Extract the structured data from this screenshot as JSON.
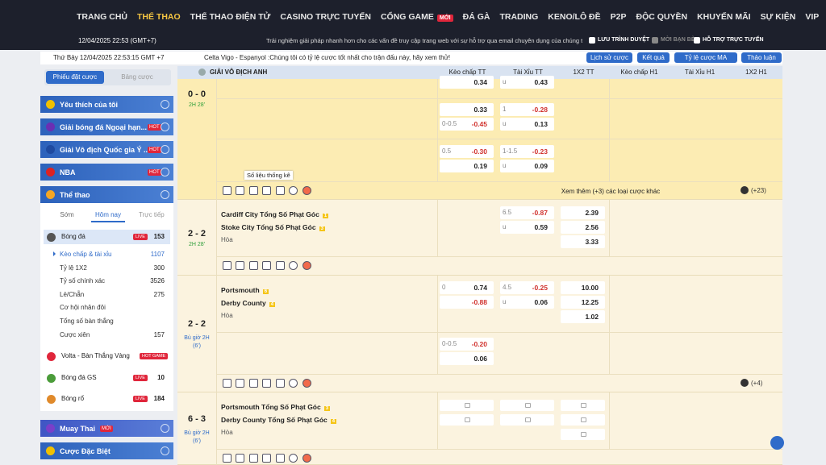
{
  "nav": {
    "items": [
      "TRANG CHỦ",
      "THỂ THAO",
      "THỂ THAO ĐIỆN TỬ",
      "CASINO TRỰC TUYẾN",
      "CỔNG GAME",
      "ĐÁ GÀ",
      "TRADING",
      "KENO/LÔ ĐỀ",
      "P2P",
      "ĐỘC QUYỀN",
      "KHUYẾN MÃI",
      "SỰ KIỆN",
      "VIP"
    ],
    "new_badge": "MỚI"
  },
  "topbar": {
    "datetime": "12/04/2025 22:53 (GMT+7)",
    "notice": "Trải nghiệm giải pháp nhanh hơn cho các vấn đề truy cập trang web với sự hỗ trợ qua email chuyên dụng của chúng tôi",
    "links": [
      "LƯU TRÌNH DUYỆT",
      "MỜI BẠN BÈ",
      "HỖ TRỢ TRỰC TUYẾN"
    ]
  },
  "infobar": {
    "datetime": "Thứ Bảy 12/04/2025 22:53:15 GMT +7",
    "promo": "Celta Vigo - Espanyol :Chúng tôi có tỷ lệ cược tốt nhất cho trận đấu này, hãy xem thử!",
    "buttons": [
      "Lịch sử cược",
      "Kết quả",
      "Tỷ lệ cược MA",
      "Thảo luận"
    ]
  },
  "sidebar": {
    "tabs": [
      "Phiếu đặt cược",
      "Bảng cược"
    ],
    "leagues": [
      {
        "label": "Yêu thích của tôi"
      },
      {
        "label": "Giải bóng đá Ngoại hạn...",
        "badge": "HOT"
      },
      {
        "label": "Giải Vô địch Quốc gia Ý ...",
        "badge": "HOT"
      },
      {
        "label": "NBA",
        "badge": "HOT"
      }
    ],
    "sports_header": "Thể thao",
    "subtabs": [
      "Sớm",
      "Hôm nay",
      "Trực tiếp"
    ],
    "sports": [
      {
        "label": "Bóng đá",
        "badge": "LIVE",
        "count": 153,
        "markets": [
          {
            "label": "Kèo chấp & tài xỉu",
            "count": 1107
          },
          {
            "label": "Tỷ lệ 1X2",
            "count": 300
          },
          {
            "label": "Tỷ số chính xác",
            "count": 3526
          },
          {
            "label": "Lẻ/Chẵn",
            "count": 275
          },
          {
            "label": "Cơ hội nhân đôi"
          },
          {
            "label": "Tổng số bàn thắng"
          },
          {
            "label": "Cược xiên",
            "count": 157
          }
        ]
      },
      {
        "label": "Volta - Bàn Thắng Vàng",
        "badge": "HOT GAME"
      },
      {
        "label": "Bóng đá GS",
        "badge": "LIVE",
        "count": 10
      },
      {
        "label": "Bóng rổ",
        "badge": "LIVE",
        "count": 184
      }
    ],
    "bottom": [
      {
        "label": "Muay Thai",
        "badge": "MỚI"
      },
      {
        "label": "Cược Đặc Biệt"
      }
    ]
  },
  "table": {
    "league": "GIẢI VÔ ĐỊCH ANH",
    "columns": [
      "Kèo chấp TT",
      "Tài Xỉu TT",
      "1X2 TT",
      "Kèo chấp H1",
      "Tài Xỉu H1",
      "1X2 H1"
    ],
    "tooltip": "Số liệu thống kê",
    "matches": [
      {
        "score": "0 - 0",
        "time": "2H 28'",
        "blocks": [
          {
            "hdp": [
              {
                "odds": "0.34"
              }
            ],
            "ou": [
              {
                "line": "u",
                "odds": "0.43"
              }
            ]
          },
          {
            "hdp": [
              {
                "odds": "0.33"
              },
              {
                "line": "0-0.5",
                "odds": "-0.45"
              }
            ],
            "ou": [
              {
                "line": "1",
                "odds": "-0.28"
              },
              {
                "line": "u",
                "odds": "0.13"
              }
            ]
          },
          {
            "hdp": [
              {
                "line": "0.5",
                "odds": "-0.30"
              },
              {
                "odds": "0.19"
              }
            ],
            "ou": [
              {
                "line": "1-1.5",
                "odds": "-0.23"
              },
              {
                "line": "u",
                "odds": "0.09"
              }
            ]
          }
        ],
        "more": "Xem thêm (+3) các loại cược khác",
        "extra": "(+23)"
      },
      {
        "score": "2 - 2",
        "time": "2H 28'",
        "teams": [
          {
            "name": "Cardiff City Tổng Số Phạt Góc",
            "badge": 1
          },
          {
            "name": "Stoke City Tổng Số Phạt Góc",
            "badge": 3
          }
        ],
        "draw": "Hòa",
        "blocks": [
          {
            "ou": [
              {
                "line": "6.5",
                "odds": "-0.87"
              },
              {
                "line": "u",
                "odds": "0.59"
              }
            ],
            "x12": [
              "2.39",
              "2.56",
              "3.33"
            ]
          }
        ]
      },
      {
        "score": "2 - 2",
        "time": "Bù giờ 2H",
        "time_extra": "(6')",
        "teams": [
          {
            "name": "Portsmouth",
            "badge": 6
          },
          {
            "name": "Derby County",
            "badge": 4
          }
        ],
        "draw": "Hòa",
        "blocks": [
          {
            "hdp": [
              {
                "line": "0",
                "odds": "0.74"
              },
              {
                "odds": "-0.88"
              }
            ],
            "ou": [
              {
                "line": "4.5",
                "odds": "-0.25"
              },
              {
                "line": "u",
                "odds": "0.06"
              }
            ],
            "x12": [
              "10.00",
              "12.25",
              "1.02"
            ]
          },
          {
            "hdp": [
              {
                "line": "0-0.5",
                "odds": "-0.20"
              },
              {
                "odds": "0.06"
              }
            ]
          }
        ],
        "extra": "(+4)"
      },
      {
        "score": "6 - 3",
        "time": "Bù giờ 2H",
        "time_extra": "(6')",
        "teams": [
          {
            "name": "Portsmouth Tổng Số Phạt Góc",
            "badge": 3
          },
          {
            "name": "Derby County Tổng Số Phạt Góc",
            "badge": 4
          }
        ],
        "draw": "Hòa",
        "locked": true
      }
    ]
  }
}
